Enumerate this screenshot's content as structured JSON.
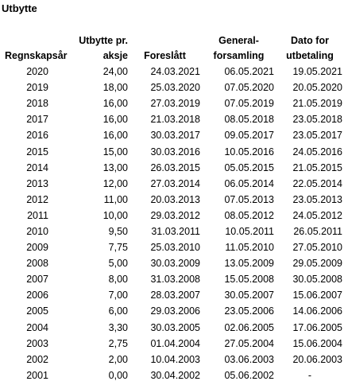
{
  "title": "Utbytte",
  "headers": {
    "year": "Regnskapsår",
    "dividend": [
      "Utbytte pr.",
      "aksje"
    ],
    "proposed": "Foreslått",
    "general_meeting": [
      "General-",
      "forsamling"
    ],
    "payment_date": [
      "Dato for",
      "utbetaling"
    ]
  },
  "rows": [
    {
      "year": "2020",
      "dividend": "24,00",
      "proposed": "24.03.2021",
      "general_meeting": "06.05.2021",
      "payment_date": "19.05.2021"
    },
    {
      "year": "2019",
      "dividend": "18,00",
      "proposed": "25.03.2020",
      "general_meeting": "07.05.2020",
      "payment_date": "20.05.2020"
    },
    {
      "year": "2018",
      "dividend": "16,00",
      "proposed": "27.03.2019",
      "general_meeting": "07.05.2019",
      "payment_date": "21.05.2019"
    },
    {
      "year": "2017",
      "dividend": "16,00",
      "proposed": "21.03.2018",
      "general_meeting": "08.05.2018",
      "payment_date": "23.05.2018"
    },
    {
      "year": "2016",
      "dividend": "16,00",
      "proposed": "30.03.2017",
      "general_meeting": "09.05.2017",
      "payment_date": "23.05.2017"
    },
    {
      "year": "2015",
      "dividend": "15,00",
      "proposed": "30.03.2016",
      "general_meeting": "10.05.2016",
      "payment_date": "24.05.2016"
    },
    {
      "year": "2014",
      "dividend": "13,00",
      "proposed": "26.03.2015",
      "general_meeting": "05.05.2015",
      "payment_date": "21.05.2015"
    },
    {
      "year": "2013",
      "dividend": "12,00",
      "proposed": "27.03.2014",
      "general_meeting": "06.05.2014",
      "payment_date": "22.05.2014"
    },
    {
      "year": "2012",
      "dividend": "11,00",
      "proposed": "20.03.2013",
      "general_meeting": "07.05.2013",
      "payment_date": "23.05.2013"
    },
    {
      "year": "2011",
      "dividend": "10,00",
      "proposed": "29.03.2012",
      "general_meeting": "08.05.2012",
      "payment_date": "24.05.2012"
    },
    {
      "year": "2010",
      "dividend": "9,50",
      "proposed": "31.03.2011",
      "general_meeting": "10.05.2011",
      "payment_date": "26.05.2011"
    },
    {
      "year": "2009",
      "dividend": "7,75",
      "proposed": "25.03.2010",
      "general_meeting": "11.05.2010",
      "payment_date": "27.05.2010"
    },
    {
      "year": "2008",
      "dividend": "5,00",
      "proposed": "30.03.2009",
      "general_meeting": "13.05.2009",
      "payment_date": "29.05.2009"
    },
    {
      "year": "2007",
      "dividend": "8,00",
      "proposed": "31.03.2008",
      "general_meeting": "15.05.2008",
      "payment_date": "30.05.2008"
    },
    {
      "year": "2006",
      "dividend": "7,00",
      "proposed": "28.03.2007",
      "general_meeting": "30.05.2007",
      "payment_date": "15.06.2007"
    },
    {
      "year": "2005",
      "dividend": "6,00",
      "proposed": "29.03.2006",
      "general_meeting": "23.05.2006",
      "payment_date": "14.06.2006"
    },
    {
      "year": "2004",
      "dividend": "3,30",
      "proposed": "30.03.2005",
      "general_meeting": "02.06.2005",
      "payment_date": "17.06.2005"
    },
    {
      "year": "2003",
      "dividend": "2,75",
      "proposed": "01.04.2004",
      "general_meeting": "27.05.2004",
      "payment_date": "15.06.2004"
    },
    {
      "year": "2002",
      "dividend": "2,00",
      "proposed": "10.04.2003",
      "general_meeting": "03.06.2003",
      "payment_date": "20.06.2003"
    },
    {
      "year": "2001",
      "dividend": "0,00",
      "proposed": "30.04.2002",
      "general_meeting": "05.06.2002",
      "payment_date": "-"
    }
  ]
}
